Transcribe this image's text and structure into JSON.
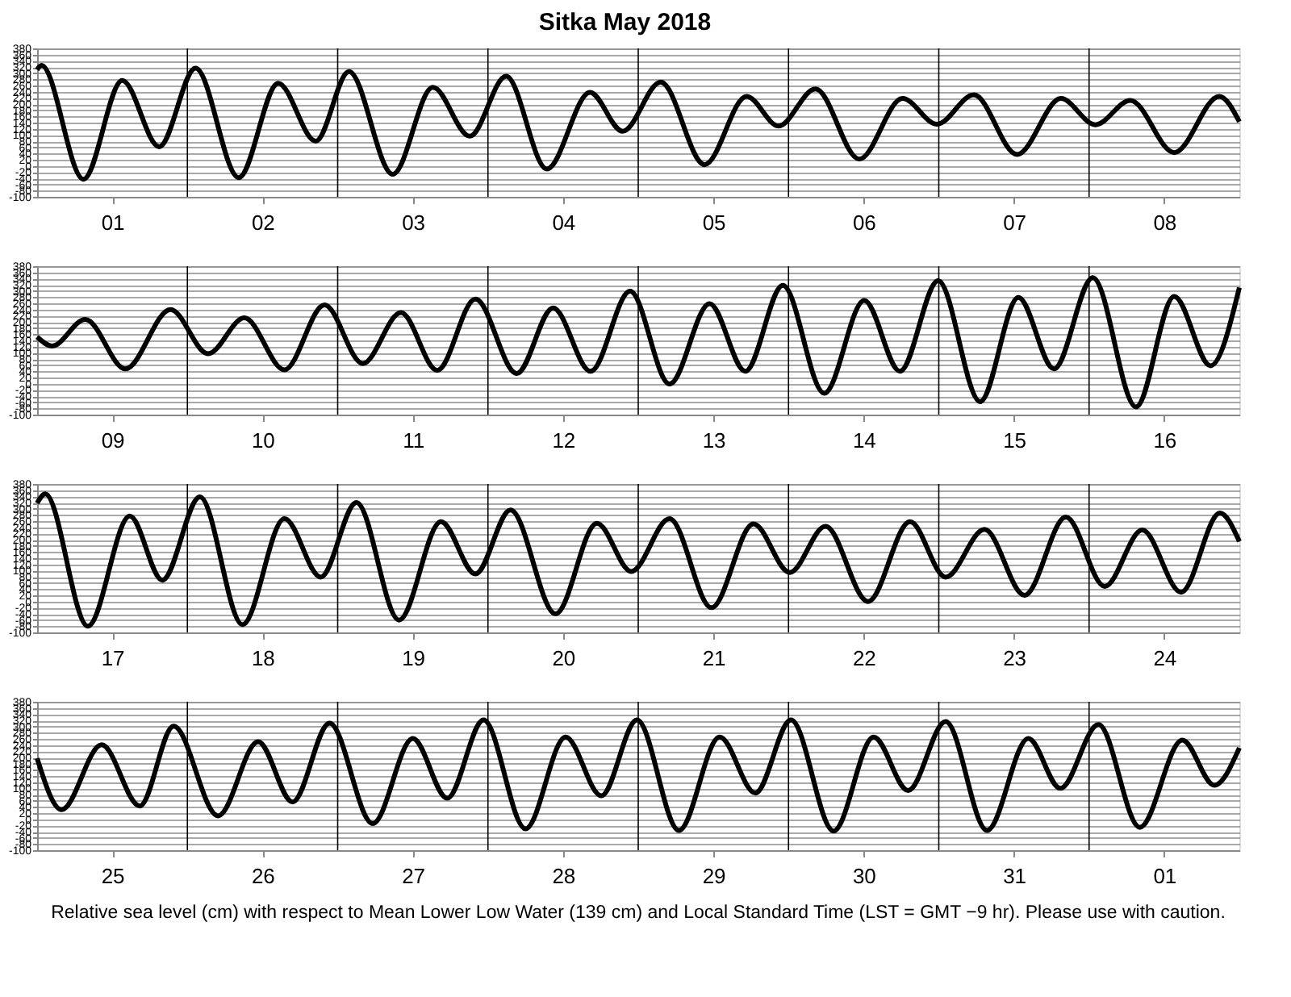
{
  "chart_data": [
    {
      "type": "line",
      "title": "Sitka          May   2018",
      "xlim": [
        "2018-05-01T00:00",
        "2018-05-09T00:00"
      ],
      "ylim": [
        -100,
        380
      ],
      "yticks": [
        -100,
        -80,
        -60,
        -40,
        -20,
        0,
        20,
        40,
        60,
        80,
        100,
        120,
        140,
        160,
        180,
        200,
        220,
        240,
        260,
        280,
        300,
        320,
        340,
        360,
        380
      ],
      "xticks": [
        {
          "value": "2018-05-01T12:00",
          "label": "01"
        },
        {
          "value": "2018-05-02T12:00",
          "label": "02"
        },
        {
          "value": "2018-05-03T12:00",
          "label": "03"
        },
        {
          "value": "2018-05-04T12:00",
          "label": "04"
        },
        {
          "value": "2018-05-05T12:00",
          "label": "05"
        },
        {
          "value": "2018-05-06T12:00",
          "label": "06"
        },
        {
          "value": "2018-05-07T12:00",
          "label": "07"
        },
        {
          "value": "2018-05-08T12:00",
          "label": "08"
        }
      ],
      "grid": "y",
      "line_style": "solid",
      "ref_lines": [
        {
          "axis": "x",
          "value": "2018-05-02T00:00",
          "color": "#000000"
        },
        {
          "axis": "x",
          "value": "2018-05-03T00:00",
          "color": "#000000"
        },
        {
          "axis": "x",
          "value": "2018-05-04T00:00",
          "color": "#000000"
        },
        {
          "axis": "x",
          "value": "2018-05-05T00:00",
          "color": "#000000"
        },
        {
          "axis": "x",
          "value": "2018-05-06T00:00",
          "color": "#000000"
        },
        {
          "axis": "x",
          "value": "2018-05-07T00:00",
          "color": "#000000"
        },
        {
          "axis": "x",
          "value": "2018-05-08T00:00",
          "color": "#000000"
        }
      ],
      "x": [
        "2018-05-01T00:00",
        "2018-05-01T00:42",
        "2018-05-01T07:24",
        "2018-05-01T13:36",
        "2018-05-01T19:30",
        "2018-05-02T01:18",
        "2018-05-02T08:12",
        "2018-05-02T14:30",
        "2018-05-02T20:30",
        "2018-05-03T01:48",
        "2018-05-03T08:48",
        "2018-05-03T15:12",
        "2018-05-03T21:06",
        "2018-05-04T02:54",
        "2018-05-04T09:24",
        "2018-05-04T16:18",
        "2018-05-04T21:30",
        "2018-05-05T03:36",
        "2018-05-05T10:36",
        "2018-05-05T17:18",
        "2018-05-05T22:24",
        "2018-05-06T04:18",
        "2018-05-06T11:18",
        "2018-05-06T18:12",
        "2018-05-06T23:42",
        "2018-05-07T05:36",
        "2018-05-07T12:30",
        "2018-05-07T19:30",
        "2018-05-08T01:00",
        "2018-05-08T06:36",
        "2018-05-08T13:36",
        "2018-05-08T20:48",
        "2018-05-09T00:00"
      ],
      "series": [
        {
          "color": "#000000",
          "values": [
            311,
            325,
            -43,
            276,
            62,
            316,
            -38,
            267,
            80,
            305,
            -27,
            254,
            96,
            290,
            -10,
            238,
            112,
            271,
            4,
            225,
            129,
            249,
            22,
            218,
            135,
            230,
            37,
            218,
            133,
            212,
            43,
            225,
            143
          ]
        }
      ]
    },
    {
      "type": "line",
      "xlim": [
        "2018-05-09T00:00",
        "2018-05-17T00:00"
      ],
      "ylim": [
        -100,
        380
      ],
      "yticks": [
        -100,
        -80,
        -60,
        -40,
        -20,
        0,
        20,
        40,
        60,
        80,
        100,
        120,
        140,
        160,
        180,
        200,
        220,
        240,
        260,
        280,
        300,
        320,
        340,
        360,
        380
      ],
      "xticks": [
        {
          "value": "2018-05-09T12:00",
          "label": "09"
        },
        {
          "value": "2018-05-10T12:00",
          "label": "10"
        },
        {
          "value": "2018-05-11T12:00",
          "label": "11"
        },
        {
          "value": "2018-05-12T12:00",
          "label": "12"
        },
        {
          "value": "2018-05-13T12:00",
          "label": "13"
        },
        {
          "value": "2018-05-14T12:00",
          "label": "14"
        },
        {
          "value": "2018-05-15T12:00",
          "label": "15"
        },
        {
          "value": "2018-05-16T12:00",
          "label": "16"
        }
      ],
      "grid": "y",
      "line_style": "solid",
      "ref_lines": [
        {
          "axis": "x",
          "value": "2018-05-10T00:00",
          "color": "#000000"
        },
        {
          "axis": "x",
          "value": "2018-05-11T00:00",
          "color": "#000000"
        },
        {
          "axis": "x",
          "value": "2018-05-12T00:00",
          "color": "#000000"
        },
        {
          "axis": "x",
          "value": "2018-05-13T00:00",
          "color": "#000000"
        },
        {
          "axis": "x",
          "value": "2018-05-14T00:00",
          "color": "#000000"
        },
        {
          "axis": "x",
          "value": "2018-05-15T00:00",
          "color": "#000000"
        },
        {
          "axis": "x",
          "value": "2018-05-16T00:00",
          "color": "#000000"
        }
      ],
      "x": [
        "2018-05-09T00:00",
        "2018-05-09T02:24",
        "2018-05-09T07:42",
        "2018-05-09T14:06",
        "2018-05-09T21:18",
        "2018-05-10T03:18",
        "2018-05-10T09:06",
        "2018-05-10T15:30",
        "2018-05-10T21:54",
        "2018-05-11T04:00",
        "2018-05-11T10:06",
        "2018-05-11T15:54",
        "2018-05-11T22:00",
        "2018-05-12T04:36",
        "2018-05-12T10:24",
        "2018-05-12T16:24",
        "2018-05-12T22:42",
        "2018-05-13T05:00",
        "2018-05-13T11:24",
        "2018-05-13T17:06",
        "2018-05-13T23:06",
        "2018-05-14T05:42",
        "2018-05-14T12:06",
        "2018-05-14T17:48",
        "2018-05-14T23:54",
        "2018-05-15T06:36",
        "2018-05-15T12:42",
        "2018-05-15T18:24",
        "2018-05-16T00:36",
        "2018-05-16T07:30",
        "2018-05-16T13:36",
        "2018-05-16T19:24",
        "2018-05-17T00:00"
      ],
      "series": [
        {
          "color": "#000000",
          "values": [
            151,
            122,
            208,
            48,
            240,
            97,
            213,
            45,
            255,
            65,
            230,
            43,
            274,
            33,
            245,
            40,
            299,
            -1,
            259,
            40,
            318,
            -31,
            269,
            40,
            333,
            -58,
            279,
            48,
            343,
            -75,
            282,
            58,
            311
          ]
        }
      ]
    },
    {
      "type": "line",
      "xlim": [
        "2018-05-17T00:00",
        "2018-05-25T00:00"
      ],
      "ylim": [
        -100,
        380
      ],
      "yticks": [
        -100,
        -80,
        -60,
        -40,
        -20,
        0,
        20,
        40,
        60,
        80,
        100,
        120,
        140,
        160,
        180,
        200,
        220,
        240,
        260,
        280,
        300,
        320,
        340,
        360,
        380
      ],
      "xticks": [
        {
          "value": "2018-05-17T12:00",
          "label": "17"
        },
        {
          "value": "2018-05-18T12:00",
          "label": "18"
        },
        {
          "value": "2018-05-19T12:00",
          "label": "19"
        },
        {
          "value": "2018-05-20T12:00",
          "label": "20"
        },
        {
          "value": "2018-05-21T12:00",
          "label": "21"
        },
        {
          "value": "2018-05-22T12:00",
          "label": "22"
        },
        {
          "value": "2018-05-23T12:00",
          "label": "23"
        },
        {
          "value": "2018-05-24T12:00",
          "label": "24"
        }
      ],
      "grid": "y",
      "line_style": "solid",
      "ref_lines": [
        {
          "axis": "x",
          "value": "2018-05-18T00:00",
          "color": "#000000"
        },
        {
          "axis": "x",
          "value": "2018-05-19T00:00",
          "color": "#000000"
        },
        {
          "axis": "x",
          "value": "2018-05-20T00:00",
          "color": "#000000"
        },
        {
          "axis": "x",
          "value": "2018-05-21T00:00",
          "color": "#000000"
        },
        {
          "axis": "x",
          "value": "2018-05-22T00:00",
          "color": "#000000"
        },
        {
          "axis": "x",
          "value": "2018-05-23T00:00",
          "color": "#000000"
        },
        {
          "axis": "x",
          "value": "2018-05-24T00:00",
          "color": "#000000"
        }
      ],
      "x": [
        "2018-05-17T00:00",
        "2018-05-17T01:18",
        "2018-05-17T08:06",
        "2018-05-17T14:48",
        "2018-05-17T20:00",
        "2018-05-18T02:00",
        "2018-05-18T08:48",
        "2018-05-18T15:30",
        "2018-05-18T21:18",
        "2018-05-19T03:00",
        "2018-05-19T09:48",
        "2018-05-19T16:30",
        "2018-05-19T22:00",
        "2018-05-20T03:36",
        "2018-05-20T10:48",
        "2018-05-20T17:24",
        "2018-05-20T22:54",
        "2018-05-21T05:00",
        "2018-05-21T11:42",
        "2018-05-21T18:24",
        "2018-05-22T00:12",
        "2018-05-22T05:54",
        "2018-05-22T12:42",
        "2018-05-22T19:24",
        "2018-05-23T01:06",
        "2018-05-23T07:18",
        "2018-05-23T13:42",
        "2018-05-23T20:18",
        "2018-05-24T02:30",
        "2018-05-24T08:30",
        "2018-05-24T14:42",
        "2018-05-24T20:54",
        "2018-05-25T00:00"
      ],
      "series": [
        {
          "color": "#000000",
          "values": [
            318,
            348,
            -80,
            276,
            69,
            338,
            -75,
            268,
            79,
            320,
            -60,
            258,
            89,
            296,
            -40,
            253,
            97,
            268,
            -20,
            251,
            94,
            243,
            0,
            258,
            79,
            233,
            20,
            273,
            49,
            231,
            30,
            286,
            194
          ]
        }
      ]
    },
    {
      "type": "line",
      "xlim": [
        "2018-05-25T00:00",
        "2018-06-02T00:00"
      ],
      "ylim": [
        -100,
        380
      ],
      "yticks": [
        -100,
        -80,
        -60,
        -40,
        -20,
        0,
        20,
        40,
        60,
        80,
        100,
        120,
        140,
        160,
        180,
        200,
        220,
        240,
        260,
        280,
        300,
        320,
        340,
        360,
        380
      ],
      "xticks": [
        {
          "value": "2018-05-25T12:00",
          "label": "25"
        },
        {
          "value": "2018-05-26T12:00",
          "label": "26"
        },
        {
          "value": "2018-05-27T12:00",
          "label": "27"
        },
        {
          "value": "2018-05-28T12:00",
          "label": "28"
        },
        {
          "value": "2018-05-29T12:00",
          "label": "29"
        },
        {
          "value": "2018-05-30T12:00",
          "label": "30"
        },
        {
          "value": "2018-05-31T12:00",
          "label": "31"
        },
        {
          "value": "2018-06-01T12:00",
          "label": "01"
        }
      ],
      "grid": "y",
      "line_style": "solid",
      "annotations": [
        "Relative sea level (cm) with respect to Mean Lower Low Water (139 cm) and Local Standard Time (LST = GMT −9 hr). Please use with caution."
      ],
      "ref_lines": [
        {
          "axis": "x",
          "value": "2018-05-26T00:00",
          "color": "#000000"
        },
        {
          "axis": "x",
          "value": "2018-05-27T00:00",
          "color": "#000000"
        },
        {
          "axis": "x",
          "value": "2018-05-28T00:00",
          "color": "#000000"
        },
        {
          "axis": "x",
          "value": "2018-05-29T00:00",
          "color": "#000000"
        },
        {
          "axis": "x",
          "value": "2018-05-30T00:00",
          "color": "#000000"
        },
        {
          "axis": "x",
          "value": "2018-05-31T00:00",
          "color": "#000000"
        },
        {
          "axis": "x",
          "value": "2018-06-01T00:00",
          "color": "#000000"
        }
      ],
      "x": [
        "2018-05-25T00:00",
        "2018-05-25T03:54",
        "2018-05-25T10:18",
        "2018-05-25T16:24",
        "2018-05-25T21:48",
        "2018-05-26T04:54",
        "2018-05-26T11:18",
        "2018-05-26T16:48",
        "2018-05-26T22:42",
        "2018-05-27T05:36",
        "2018-05-27T12:00",
        "2018-05-27T17:30",
        "2018-05-27T23:18",
        "2018-05-28T06:00",
        "2018-05-28T12:24",
        "2018-05-28T18:06",
        "2018-05-28T23:48",
        "2018-05-29T06:30",
        "2018-05-29T13:00",
        "2018-05-29T18:42",
        "2018-05-30T00:24",
        "2018-05-30T07:12",
        "2018-05-30T13:36",
        "2018-05-30T19:06",
        "2018-05-31T01:06",
        "2018-05-31T07:42",
        "2018-05-31T14:18",
        "2018-05-31T19:24",
        "2018-06-01T01:30",
        "2018-06-01T08:06",
        "2018-06-01T14:54",
        "2018-06-01T20:00",
        "2018-06-02T00:00"
      ],
      "series": [
        {
          "color": "#000000",
          "values": [
            197,
            31,
            241,
            43,
            301,
            11,
            251,
            56,
            311,
            -14,
            261,
            68,
            321,
            -31,
            266,
            76,
            321,
            -36,
            266,
            85,
            321,
            -38,
            266,
            93,
            316,
            -36,
            261,
            100,
            306,
            -26,
            256,
            110,
            231
          ]
        }
      ]
    }
  ]
}
